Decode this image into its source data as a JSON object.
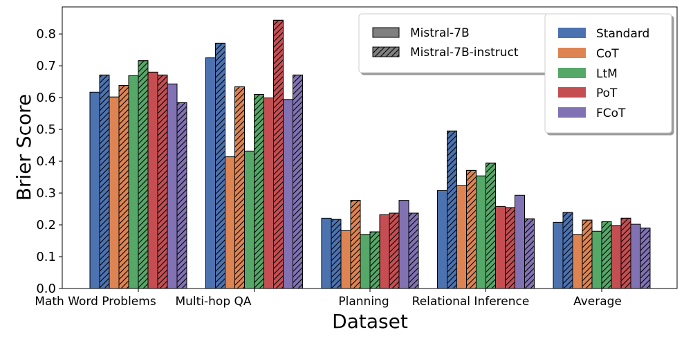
{
  "chart_data": {
    "type": "bar",
    "title": "",
    "xlabel": "Dataset",
    "ylabel": "Brier Score",
    "ylim": [
      0,
      0.885
    ],
    "yticks": [
      "0.0",
      "0.1",
      "0.2",
      "0.3",
      "0.4",
      "0.5",
      "0.6",
      "0.7",
      "0.8"
    ],
    "categories": [
      "Math Word Problems",
      "Multi-hop QA",
      "Planning",
      "Relational Inference",
      "Average"
    ],
    "models": [
      {
        "name": "Mistral-7B",
        "hatch": false,
        "swatch_color": "#808080"
      },
      {
        "name": "Mistral-7B-instruct",
        "hatch": true,
        "swatch_color": "#808080"
      }
    ],
    "methods": [
      {
        "name": "Standard",
        "color": "#4c72b0"
      },
      {
        "name": "CoT",
        "color": "#dd8452"
      },
      {
        "name": "LtM",
        "color": "#55a868"
      },
      {
        "name": "PoT",
        "color": "#c44e52"
      },
      {
        "name": "FCoT",
        "color": "#8172b3"
      }
    ],
    "series": [
      {
        "name": "Standard / Mistral-7B",
        "method": "Standard",
        "model": "Mistral-7B",
        "values": [
          0.617,
          0.725,
          0.221,
          0.308,
          0.208
        ]
      },
      {
        "name": "Standard / Mistral-7B-instruct",
        "method": "Standard",
        "model": "Mistral-7B-instruct",
        "values": [
          0.671,
          0.771,
          0.217,
          0.495,
          0.239
        ]
      },
      {
        "name": "CoT / Mistral-7B",
        "method": "CoT",
        "model": "Mistral-7B",
        "values": [
          0.602,
          0.414,
          0.182,
          0.323,
          0.17
        ]
      },
      {
        "name": "CoT / Mistral-7B-instruct",
        "method": "CoT",
        "model": "Mistral-7B-instruct",
        "values": [
          0.638,
          0.634,
          0.277,
          0.371,
          0.215
        ]
      },
      {
        "name": "LtM / Mistral-7B",
        "method": "LtM",
        "model": "Mistral-7B",
        "values": [
          0.669,
          0.432,
          0.17,
          0.354,
          0.18
        ]
      },
      {
        "name": "LtM / Mistral-7B-instruct",
        "method": "LtM",
        "model": "Mistral-7B-instruct",
        "values": [
          0.716,
          0.61,
          0.178,
          0.394,
          0.21
        ]
      },
      {
        "name": "PoT / Mistral-7B",
        "method": "PoT",
        "model": "Mistral-7B",
        "values": [
          0.68,
          0.599,
          0.232,
          0.258,
          0.198
        ]
      },
      {
        "name": "PoT / Mistral-7B-instruct",
        "method": "PoT",
        "model": "Mistral-7B-instruct",
        "values": [
          0.671,
          0.843,
          0.237,
          0.254,
          0.221
        ]
      },
      {
        "name": "FCoT / Mistral-7B",
        "method": "FCoT",
        "model": "Mistral-7B",
        "values": [
          0.643,
          0.594,
          0.277,
          0.293,
          0.202
        ]
      },
      {
        "name": "FCoT / Mistral-7B-instruct",
        "method": "FCoT",
        "model": "Mistral-7B-instruct",
        "values": [
          0.584,
          0.671,
          0.237,
          0.219,
          0.19
        ]
      }
    ],
    "legends": [
      "top-right (models)",
      "top-right (methods)"
    ]
  }
}
